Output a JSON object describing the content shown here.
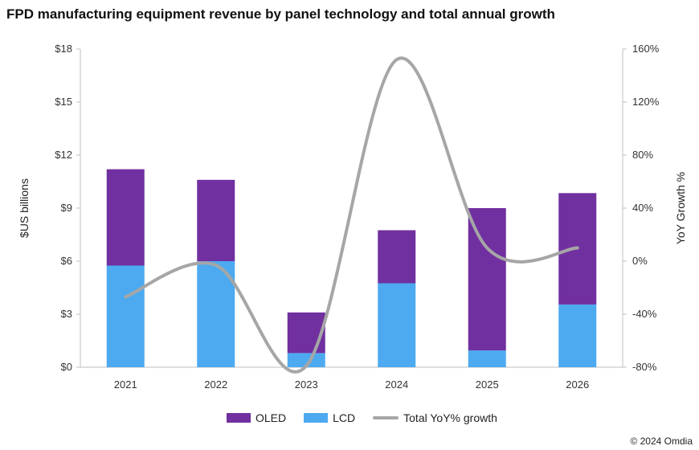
{
  "chart_data": {
    "type": "bar",
    "title": "FPD manufacturing equipment revenue by panel technology and total annual growth",
    "categories": [
      "2021",
      "2022",
      "2023",
      "2024",
      "2025",
      "2026"
    ],
    "series": [
      {
        "name": "LCD",
        "kind": "stacked-bar",
        "axis": "left",
        "color": "#4daaf0",
        "values": [
          5.75,
          6.0,
          0.8,
          4.75,
          0.95,
          3.55
        ]
      },
      {
        "name": "OLED",
        "kind": "stacked-bar",
        "axis": "left",
        "color": "#7030a0",
        "values": [
          5.45,
          4.6,
          2.3,
          3.0,
          8.05,
          6.3
        ]
      },
      {
        "name": "Total YoY% growth",
        "kind": "line",
        "axis": "right",
        "color": "#a6a6a6",
        "values": [
          -27,
          -3,
          -79,
          152,
          10,
          10
        ]
      }
    ],
    "ylabel": "$US billions",
    "ylim": [
      0,
      18
    ],
    "yticks": [
      "$0",
      "$3",
      "$6",
      "$9",
      "$12",
      "$15",
      "$18"
    ],
    "y2label": "YoY Growth %",
    "y2lim": [
      -80,
      160
    ],
    "y2ticks": [
      "-80%",
      "-40%",
      "0%",
      "40%",
      "80%",
      "120%",
      "160%"
    ],
    "legend_position": "bottom",
    "legend": [
      "OLED",
      "LCD",
      "Total YoY% growth"
    ],
    "grid": false
  },
  "source": "© 2024 Omdia"
}
